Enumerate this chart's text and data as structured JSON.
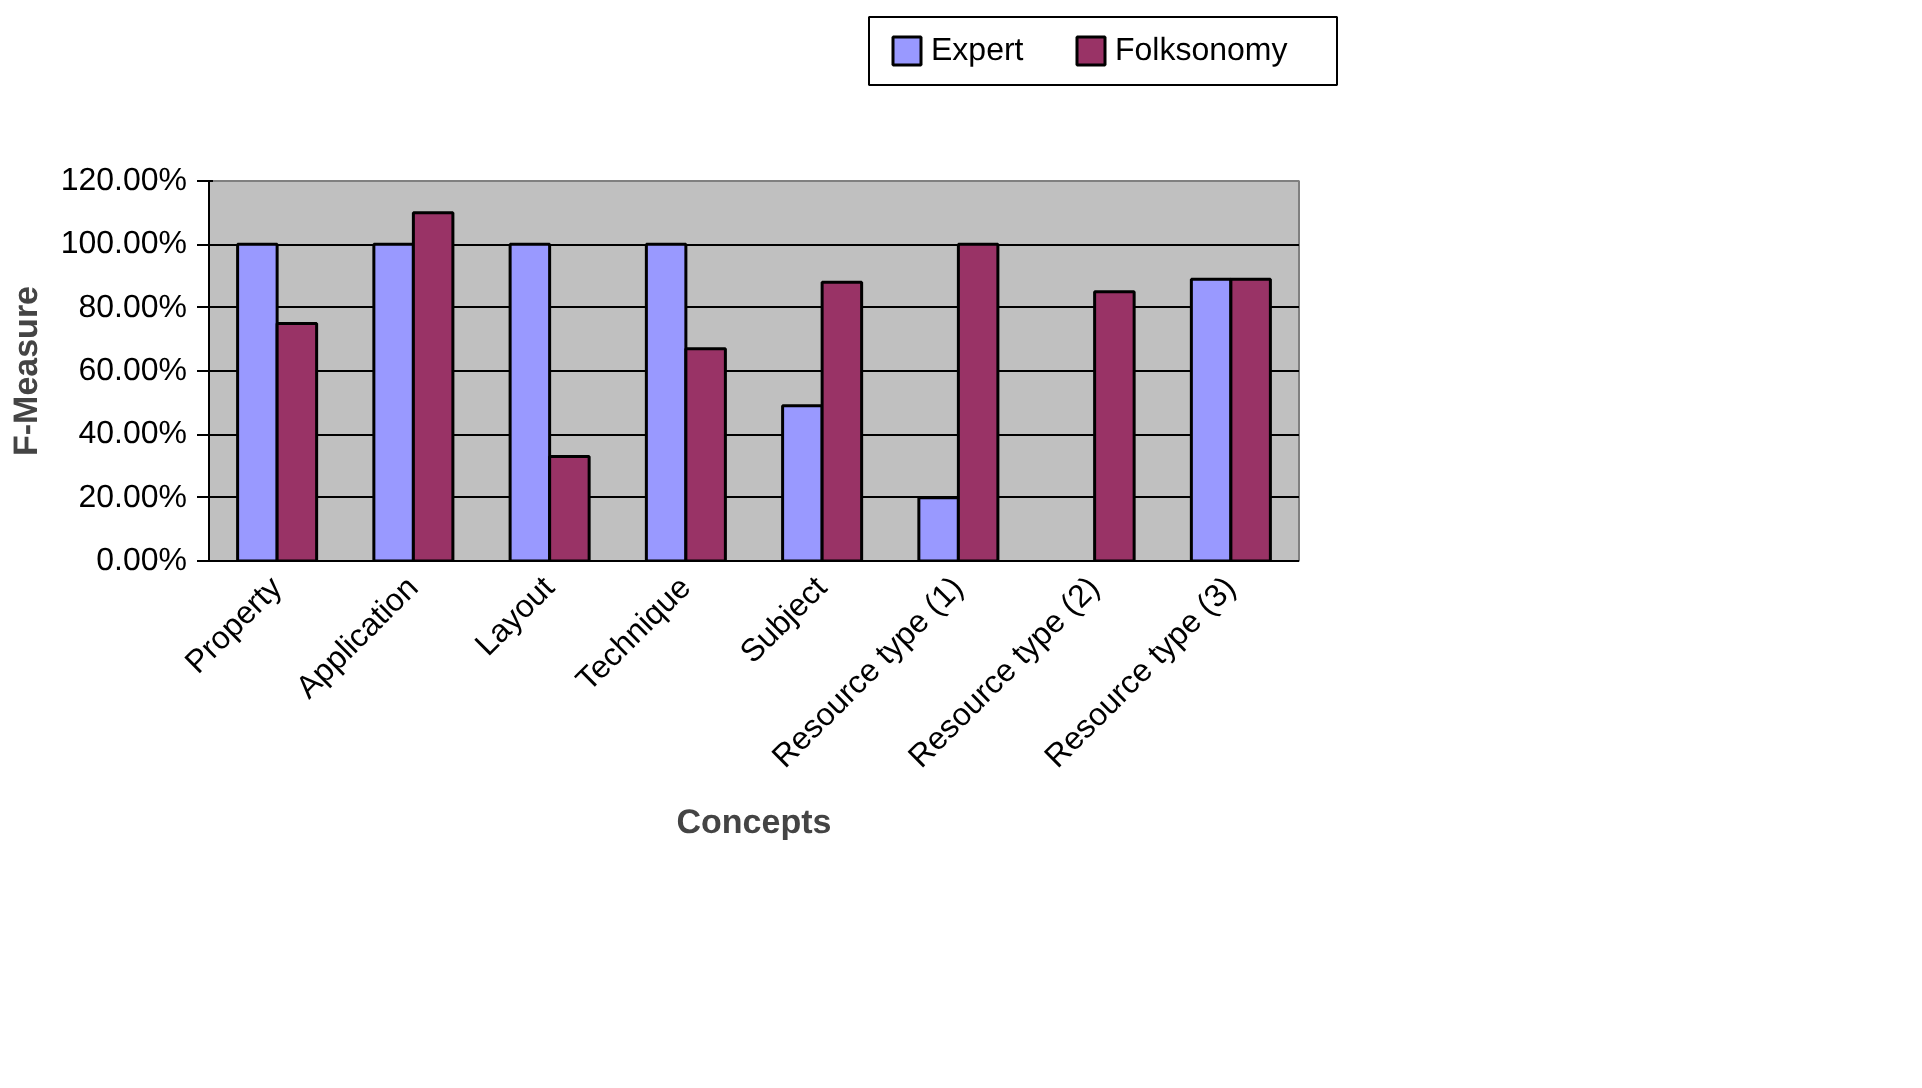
{
  "chart_data": {
    "type": "bar",
    "xlabel": "Concepts",
    "ylabel": "F-Measure",
    "categories": [
      "Property",
      "Application",
      "Layout",
      "Technique",
      "Subject",
      "Resource type (1)",
      "Resource type (2)",
      "Resource type (3)"
    ],
    "series": [
      {
        "name": "Expert",
        "color": "#9999ff",
        "values": [
          100,
          100,
          100,
          100,
          49,
          20,
          null,
          89
        ]
      },
      {
        "name": "Folksonomy",
        "color": "#993366",
        "values": [
          75,
          110,
          33,
          67,
          88,
          100,
          85,
          89
        ]
      }
    ],
    "ylim": [
      0,
      120
    ],
    "yticks": [
      {
        "value": 0,
        "label": "0.00%"
      },
      {
        "value": 20,
        "label": "20.00%"
      },
      {
        "value": 40,
        "label": "40.00%"
      },
      {
        "value": 60,
        "label": "60.00%"
      },
      {
        "value": 80,
        "label": "80.00%"
      },
      {
        "value": 100,
        "label": "100.00%"
      },
      {
        "value": 120,
        "label": "120.00%"
      }
    ],
    "grid": "y",
    "legend": "top"
  }
}
